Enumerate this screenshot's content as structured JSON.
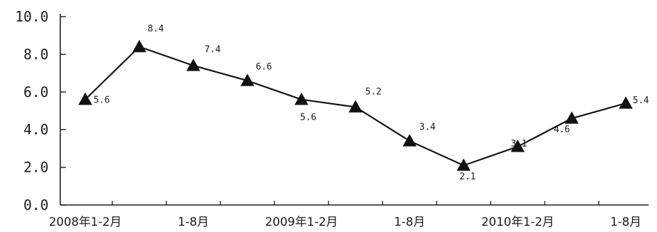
{
  "chart_data": {
    "type": "line",
    "title": "",
    "xlabel": "",
    "ylabel": "",
    "ylim": [
      0,
      10
    ],
    "yticks": [
      "0.0",
      "2.0",
      "4.0",
      "6.0",
      "8.0",
      "10.0"
    ],
    "x_tick_labels": [
      "2008年1-2月",
      "1-8月",
      "2009年1-2月",
      "1-8月",
      "2010年1-2月",
      "1-8月"
    ],
    "grid": false,
    "legend": "none",
    "marker": "triangle",
    "line_color": "#111111",
    "series": [
      {
        "values": [
          5.6,
          8.4,
          7.4,
          6.6,
          5.6,
          5.2,
          3.4,
          2.1,
          3.1,
          4.6,
          5.4
        ],
        "labels": [
          "5.6",
          "8.4",
          "7.4",
          "6.6",
          "5.6",
          "5.2",
          "3.4",
          "2.1",
          "3.1",
          "4.6",
          "5.4"
        ]
      }
    ]
  }
}
